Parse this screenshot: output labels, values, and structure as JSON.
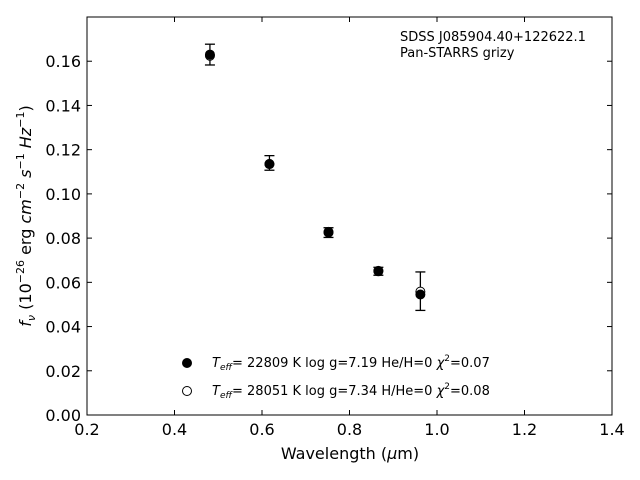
{
  "chart_data": {
    "type": "scatter",
    "title": "",
    "xlabel_main": "Wavelength (",
    "xlabel_mu": "μ",
    "xlabel_unit": "m)",
    "ylabel_f": "f",
    "ylabel_sub": "ν",
    "ylabel_open": " (10",
    "ylabel_exp1": "−26",
    "ylabel_erg": " erg ",
    "ylabel_cm": "cm",
    "ylabel_exp2": "−2",
    "ylabel_s": " s",
    "ylabel_exp3": "−1",
    "ylabel_hz": " Hz",
    "ylabel_exp4": "−1",
    "ylabel_close": ")",
    "xlim": [
      0.2,
      1.4
    ],
    "ylim": [
      0.0,
      0.18
    ],
    "x_ticks": [
      "0.2",
      "0.4",
      "0.6",
      "0.8",
      "1.0",
      "1.2",
      "1.4"
    ],
    "y_ticks": [
      "0.00",
      "0.02",
      "0.04",
      "0.06",
      "0.08",
      "0.10",
      "0.12",
      "0.14",
      "0.16"
    ],
    "annotation": [
      "SDSS J085904.40+122622.1",
      "Pan-STARRS grizy"
    ],
    "observed": {
      "x": [
        0.481,
        0.617,
        0.752,
        0.866,
        0.962
      ],
      "y": [
        0.163,
        0.114,
        0.0825,
        0.065,
        0.056
      ],
      "yerr": [
        0.0047,
        0.0033,
        0.0022,
        0.0018,
        0.0087
      ]
    },
    "series": [
      {
        "marker": "filled-circle",
        "legend_T": "T",
        "legend_Tsub": "eff",
        "legend_text": "= 22809 K  log g=7.19  He/H=0  ",
        "legend_chi": "χ",
        "legend_chi_exp": "2",
        "legend_chi_val": "=0.07",
        "x": [
          0.481,
          0.617,
          0.752,
          0.866,
          0.962
        ],
        "y": [
          0.163,
          0.1135,
          0.0825,
          0.065,
          0.0545
        ]
      },
      {
        "marker": "open-circle",
        "legend_T": "T",
        "legend_Tsub": "eff",
        "legend_text": "= 28051 K  log g=7.34  H/He=0  ",
        "legend_chi": "χ",
        "legend_chi_exp": "2",
        "legend_chi_val": "=0.08",
        "x": [
          0.481,
          0.617,
          0.752,
          0.866,
          0.962
        ],
        "y": [
          0.1625,
          0.1135,
          0.0828,
          0.0652,
          0.0558
        ]
      }
    ],
    "legend_position": "lower-center",
    "grid": false,
    "colors": {
      "axes": "#000000",
      "marker": "#000000",
      "background": "#ffffff"
    }
  }
}
